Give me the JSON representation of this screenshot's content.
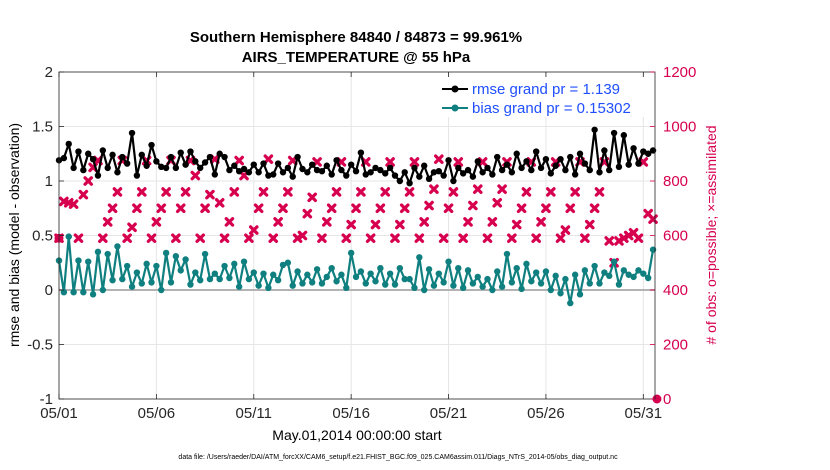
{
  "chart_data": {
    "type": "line",
    "title": "Southern Hemisphere 84840 / 84873 = 99.961%",
    "subtitle": "AIRS_TEMPERATURE @ 55 hPa",
    "xlabel": "May.01,2014 00:00:00 start",
    "ylabel": "rmse and bias (model - observation)",
    "ylabel_right": "# of obs: o=possible; ×=assimilated",
    "footnote": "data file: /Users/raeder/DAI/ATM_forcXX/CAM6_setup/f.e21.FHIST_BGC.f09_025.CAM6assim.011/Diags_NTrS_2014-05/obs_diag_output.nc",
    "x_ticks": [
      "05/01",
      "05/06",
      "05/11",
      "05/16",
      "05/21",
      "05/26",
      "05/31"
    ],
    "x_tick_days": [
      1,
      6,
      11,
      16,
      21,
      26,
      31
    ],
    "xlim": [
      1,
      31.6
    ],
    "ylim": [
      -1,
      2
    ],
    "y_ticks": [
      "-1",
      "-0.5",
      "0",
      "0.5",
      "1",
      "1.5",
      "2"
    ],
    "y_tick_values": [
      -1,
      -0.5,
      0,
      0.5,
      1,
      1.5,
      2
    ],
    "ylim_right": [
      0,
      1200
    ],
    "y_ticks_right": [
      "0",
      "200",
      "400",
      "600",
      "800",
      "1000",
      "1200"
    ],
    "y_tick_values_right": [
      0,
      200,
      400,
      600,
      800,
      1000,
      1200
    ],
    "grid": true,
    "legend_position": "top-right",
    "zero_line": 0,
    "x": [
      1.0,
      1.25,
      1.5,
      1.75,
      2.0,
      2.25,
      2.5,
      2.75,
      3.0,
      3.25,
      3.5,
      3.75,
      4.0,
      4.25,
      4.5,
      4.75,
      5.0,
      5.25,
      5.5,
      5.75,
      6.0,
      6.25,
      6.5,
      6.75,
      7.0,
      7.25,
      7.5,
      7.75,
      8.0,
      8.25,
      8.5,
      8.75,
      9.0,
      9.25,
      9.5,
      9.75,
      10.0,
      10.25,
      10.5,
      10.75,
      11.0,
      11.25,
      11.5,
      11.75,
      12.0,
      12.25,
      12.5,
      12.75,
      13.0,
      13.25,
      13.5,
      13.75,
      14.0,
      14.25,
      14.5,
      14.75,
      15.0,
      15.25,
      15.5,
      15.75,
      16.0,
      16.25,
      16.5,
      16.75,
      17.0,
      17.25,
      17.5,
      17.75,
      18.0,
      18.25,
      18.5,
      18.75,
      19.0,
      19.25,
      19.5,
      19.75,
      20.0,
      20.25,
      20.5,
      20.75,
      21.0,
      21.25,
      21.5,
      21.75,
      22.0,
      22.25,
      22.5,
      22.75,
      23.0,
      23.25,
      23.5,
      23.75,
      24.0,
      24.25,
      24.5,
      24.75,
      25.0,
      25.25,
      25.5,
      25.75,
      26.0,
      26.25,
      26.5,
      26.75,
      27.0,
      27.25,
      27.5,
      27.75,
      28.0,
      28.25,
      28.5,
      28.75,
      29.0,
      29.25,
      29.5,
      29.75,
      30.0,
      30.25,
      30.5,
      30.75,
      31.0,
      31.25,
      31.5
    ],
    "series": [
      {
        "name": "rmse grand pr = 1.139",
        "color": "#000000",
        "marker": "filled-circle",
        "values": [
          1.19,
          1.21,
          1.34,
          1.12,
          1.27,
          1.1,
          1.25,
          1.2,
          1.05,
          1.28,
          1.12,
          1.24,
          1.08,
          1.22,
          1.16,
          1.44,
          1.05,
          1.24,
          1.14,
          1.33,
          1.18,
          1.13,
          1.12,
          1.22,
          1.12,
          1.26,
          1.15,
          1.27,
          1.18,
          1.12,
          1.17,
          1.22,
          1.06,
          1.25,
          1.22,
          1.1,
          1.14,
          1.09,
          1.11,
          1.08,
          1.15,
          1.08,
          1.16,
          1.05,
          1.06,
          1.16,
          1.08,
          1.12,
          1.04,
          1.22,
          1.11,
          1.08,
          1.15,
          1.1,
          1.09,
          1.14,
          1.06,
          1.19,
          1.1,
          1.05,
          1.15,
          1.09,
          1.26,
          1.06,
          1.08,
          1.12,
          1.1,
          1.07,
          1.12,
          1.05,
          1.0,
          1.08,
          0.98,
          1.12,
          1.04,
          1.14,
          1.02,
          1.08,
          1.09,
          1.05,
          1.19,
          1.0,
          1.12,
          1.07,
          1.1,
          1.04,
          1.18,
          1.08,
          1.12,
          1.06,
          1.22,
          1.1,
          1.15,
          1.08,
          1.25,
          1.12,
          1.18,
          1.1,
          1.27,
          1.12,
          1.2,
          1.07,
          1.14,
          1.2,
          1.1,
          1.22,
          1.06,
          1.25,
          1.16,
          1.1,
          1.47,
          1.08,
          1.28,
          1.1,
          1.44,
          1.13,
          1.42,
          1.15,
          1.3,
          1.16,
          1.27,
          1.25,
          1.28
        ]
      },
      {
        "name": "bias grand pr = 0.15302",
        "color": "#0f7f7f",
        "marker": "filled-circle",
        "values": [
          0.27,
          -0.02,
          0.49,
          -0.02,
          0.27,
          -0.02,
          0.26,
          -0.04,
          0.35,
          0.0,
          0.33,
          0.09,
          0.4,
          0.1,
          0.22,
          0.03,
          0.16,
          0.06,
          0.24,
          0.07,
          0.22,
          0.0,
          0.34,
          0.07,
          0.31,
          0.18,
          0.28,
          0.05,
          0.16,
          0.09,
          0.33,
          0.1,
          0.15,
          0.1,
          0.22,
          0.11,
          0.24,
          0.03,
          0.26,
          0.1,
          0.16,
          0.04,
          0.15,
          0.02,
          0.14,
          0.09,
          0.23,
          0.25,
          0.04,
          0.17,
          0.06,
          0.14,
          0.07,
          0.19,
          0.06,
          0.12,
          0.2,
          0.08,
          0.14,
          0.02,
          0.34,
          0.12,
          0.17,
          0.06,
          0.15,
          0.08,
          0.2,
          0.05,
          0.15,
          0.05,
          0.2,
          0.1,
          0.1,
          0.02,
          0.3,
          0.0,
          0.19,
          0.04,
          0.15,
          0.07,
          0.26,
          0.04,
          0.2,
          0.02,
          0.18,
          0.06,
          0.12,
          0.03,
          0.1,
          0.0,
          0.17,
          0.03,
          0.33,
          0.07,
          0.2,
          0.01,
          0.24,
          0.08,
          0.16,
          0.06,
          0.17,
          0.0,
          0.13,
          -0.03,
          0.1,
          -0.12,
          0.14,
          -0.04,
          0.18,
          0.06,
          0.22,
          0.06,
          0.16,
          0.13,
          0.26,
          0.05,
          0.18,
          0.14,
          0.12,
          0.18,
          0.15,
          0.11,
          0.37
        ]
      }
    ],
    "obs_possible": {
      "color": "#d6004f",
      "marker": "open-circle",
      "x": [
        1.0,
        31.7
      ],
      "values": [
        590,
        0
      ]
    },
    "obs_assimilated": {
      "color": "#d6004f",
      "marker": "x",
      "values": [
        590,
        725,
        720,
        715,
        590,
        750,
        800,
        850,
        875,
        590,
        650,
        700,
        760,
        875,
        590,
        630,
        700,
        760,
        875,
        590,
        650,
        700,
        760,
        875,
        590,
        700,
        760,
        875,
        820,
        590,
        700,
        750,
        880,
        720,
        590,
        650,
        760,
        875,
        820,
        590,
        620,
        700,
        760,
        880,
        590,
        650,
        700,
        760,
        875,
        590,
        600,
        680,
        740,
        870,
        590,
        650,
        700,
        760,
        870,
        590,
        640,
        700,
        760,
        870,
        590,
        640,
        700,
        760,
        870,
        590,
        640,
        700,
        760,
        870,
        590,
        650,
        710,
        770,
        880,
        590,
        700,
        760,
        870,
        590,
        650,
        710,
        770,
        870,
        590,
        650,
        720,
        770,
        870,
        590,
        640,
        700,
        760,
        870,
        590,
        650,
        700,
        760,
        870,
        590,
        620,
        700,
        760,
        870,
        590,
        640,
        700,
        760,
        870,
        580,
        500,
        580,
        590,
        600,
        610,
        590,
        870,
        680,
        660
      ]
    }
  }
}
